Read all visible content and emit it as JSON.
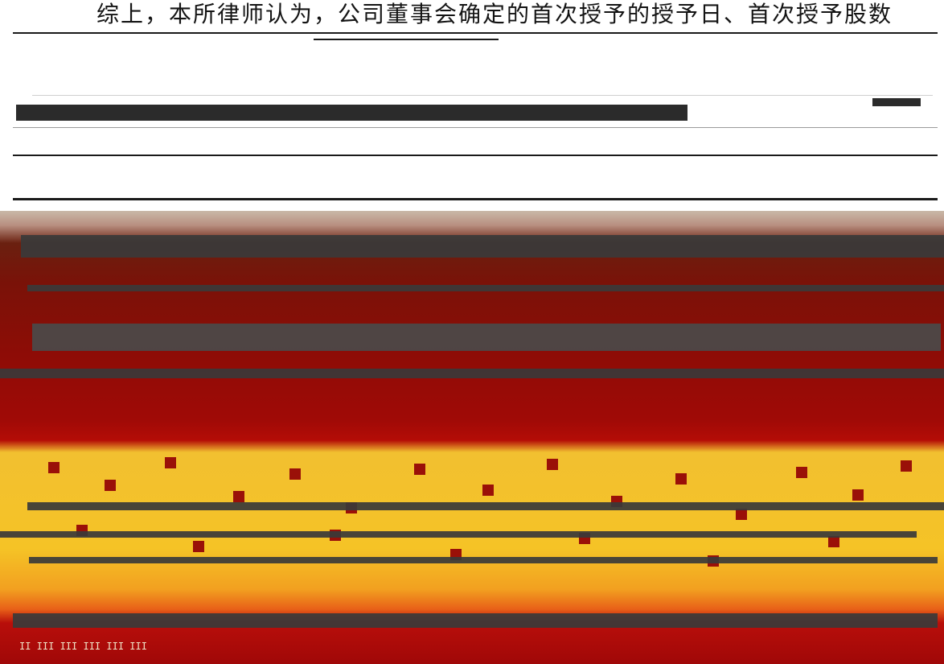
{
  "content": {
    "top_text": "综上，本所律师认为，公司董事会确定的首次授予的授予日、首次授予股数"
  },
  "colors": {
    "corrupt_red": "#a00a06",
    "corrupt_yellow": "#f5c326",
    "dark_band": "#3a3a3a"
  }
}
